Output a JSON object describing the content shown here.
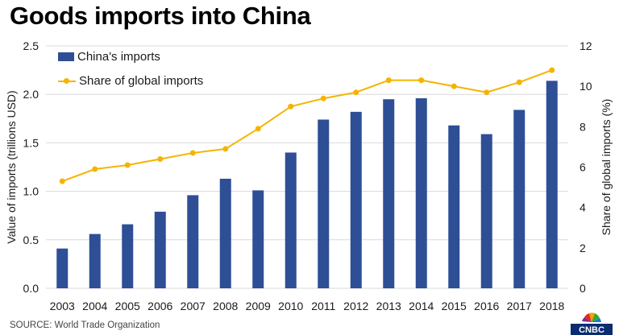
{
  "title": "Goods imports into China",
  "source": "SOURCE: World Trade Organization",
  "logo_text": "CNBC",
  "colors": {
    "bars": "#2e4f96",
    "line": "#f5b400",
    "grid": "#d9d9d9",
    "axis_text": "#1a1a1a"
  },
  "chart_data": {
    "type": "bar",
    "categories": [
      "2003",
      "2004",
      "2005",
      "2006",
      "2007",
      "2008",
      "2009",
      "2010",
      "2011",
      "2012",
      "2013",
      "2014",
      "2015",
      "2016",
      "2017",
      "2018"
    ],
    "series": [
      {
        "name": "China's imports",
        "type": "bar",
        "axis": "left",
        "values": [
          0.41,
          0.56,
          0.66,
          0.79,
          0.96,
          1.13,
          1.01,
          1.4,
          1.74,
          1.82,
          1.95,
          1.96,
          1.68,
          1.59,
          1.84,
          2.14
        ]
      },
      {
        "name": "Share of global imports",
        "type": "line",
        "axis": "right",
        "values": [
          5.3,
          5.9,
          6.1,
          6.4,
          6.7,
          6.9,
          7.9,
          9.0,
          9.4,
          9.7,
          10.3,
          10.3,
          10.0,
          9.7,
          10.2,
          10.8
        ]
      }
    ],
    "ylabel": "Value of imports (trillions USD)",
    "y2label": "Share of global imports (%)",
    "ylim": [
      0,
      2.5
    ],
    "y2lim": [
      0,
      12
    ],
    "yticks": [
      "0.0",
      "0.5",
      "1.0",
      "1.5",
      "2.0",
      "2.5"
    ],
    "y2ticks": [
      "0",
      "2",
      "4",
      "6",
      "8",
      "10",
      "12"
    ],
    "grid": true,
    "legend_position": "top-left"
  }
}
